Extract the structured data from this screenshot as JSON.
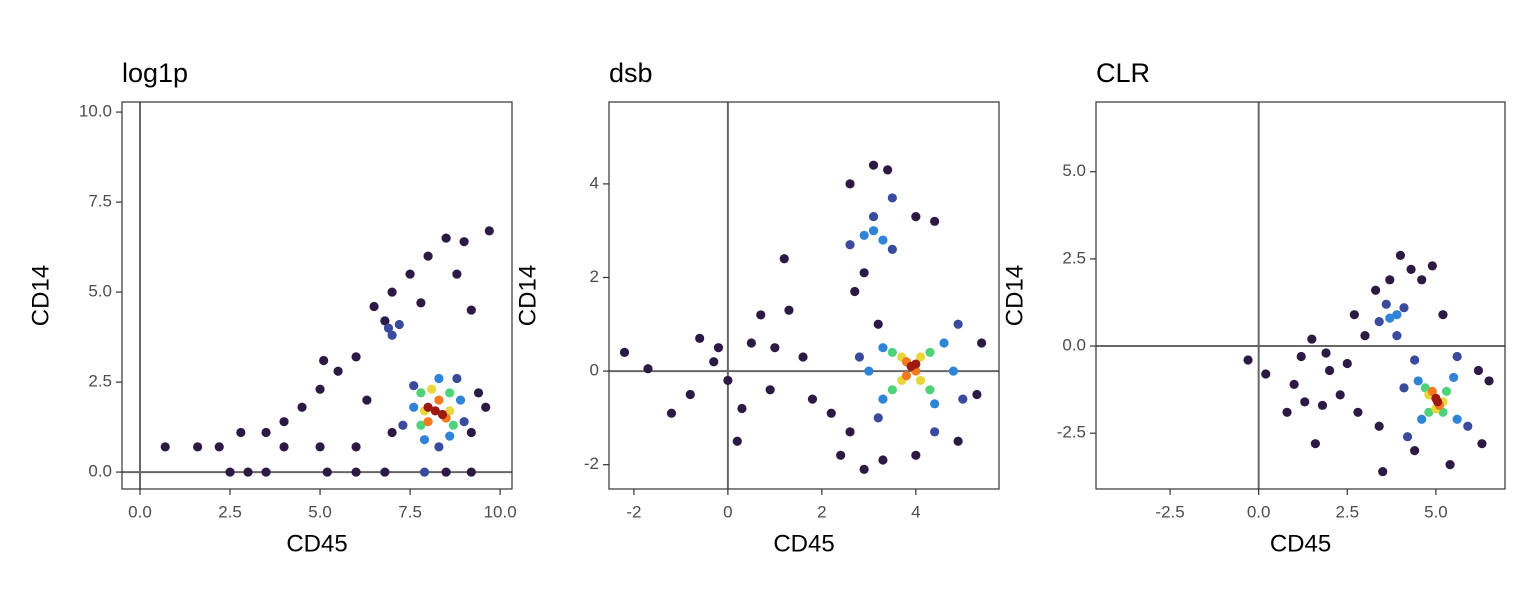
{
  "chart_data": [
    {
      "type": "scatter",
      "title": "log1p",
      "x_label": "CD45",
      "y_label": "CD14",
      "xlim": [
        -0.5,
        10.33
      ],
      "ylim": [
        -0.47,
        10.28
      ],
      "xticks": [
        {
          "value": 0,
          "label": "0.0"
        },
        {
          "value": 2.5,
          "label": "2.5"
        },
        {
          "value": 5,
          "label": "5.0"
        },
        {
          "value": 7.5,
          "label": "7.5"
        },
        {
          "value": 10,
          "label": "10.0"
        }
      ],
      "yticks": [
        {
          "value": 0,
          "label": "0.0"
        },
        {
          "value": 2.5,
          "label": "2.5"
        },
        {
          "value": 5,
          "label": "5.0"
        },
        {
          "value": 7.5,
          "label": "7.5"
        },
        {
          "value": 10,
          "label": "10.0"
        }
      ],
      "reference_lines": {
        "x": 0,
        "y": 0
      },
      "series": [
        {
          "color": "#2c1a45",
          "x": [
            0.7,
            1.6,
            2.2,
            2.5,
            3,
            3.5,
            2.8,
            3.5,
            4,
            4.5,
            5,
            5.5,
            6,
            6.5,
            7,
            7.5,
            8,
            8.5,
            9,
            9.7,
            8.8,
            9.2,
            9.4,
            9.6,
            5.2,
            6,
            6.8,
            8.5,
            9.2,
            4,
            5,
            6,
            7,
            9.2,
            6.3,
            6.8,
            5.1,
            7.8
          ],
          "values": [
            0.7,
            0.7,
            0.7,
            0,
            0,
            0,
            1.1,
            1.1,
            1.4,
            1.8,
            2.3,
            2.8,
            3.2,
            4.6,
            5,
            5.5,
            6,
            6.5,
            6.4,
            6.7,
            5.5,
            4.5,
            2.2,
            1.8,
            0,
            0,
            0,
            0,
            0,
            0.7,
            0.7,
            0.7,
            1.1,
            1.1,
            2,
            4.2,
            3.1,
            4.7
          ]
        },
        {
          "color": "#3a4a9c",
          "x": [
            6.9,
            7.2,
            7.0,
            7.6,
            8.8,
            7.3,
            9.0,
            7.9,
            8.3
          ],
          "values": [
            4.0,
            4.1,
            3.8,
            2.4,
            2.6,
            1.3,
            1.4,
            0,
            0.7
          ]
        },
        {
          "color": "#2f84d8",
          "x": [
            7.6,
            8.9,
            8.3,
            7.9,
            8.6
          ],
          "values": [
            1.8,
            2.0,
            2.6,
            0.9,
            1.0
          ]
        },
        {
          "color": "#4fd37a",
          "x": [
            7.8,
            8.6,
            7.8,
            8.7
          ],
          "values": [
            2.2,
            2.2,
            1.3,
            1.3
          ]
        },
        {
          "color": "#e8d63a",
          "x": [
            8.1,
            7.9,
            8.6
          ],
          "values": [
            2.3,
            1.7,
            1.7
          ]
        },
        {
          "color": "#f47a1f",
          "x": [
            8.3,
            8.0,
            8.5
          ],
          "values": [
            2.0,
            1.4,
            1.5
          ]
        },
        {
          "color": "#9e1a10",
          "x": [
            8.2,
            8.0,
            8.4
          ],
          "values": [
            1.7,
            1.8,
            1.6
          ]
        }
      ]
    },
    {
      "type": "scatter",
      "title": "dsb",
      "x_label": "CD45",
      "y_label": "CD14",
      "xlim": [
        -2.53,
        5.77
      ],
      "ylim": [
        -2.52,
        5.75
      ],
      "xticks": [
        -2,
        0,
        2,
        4
      ],
      "yticks": [
        -2,
        0,
        2,
        4
      ],
      "reference_lines": {
        "x": 0,
        "y": 0
      },
      "series": [
        {
          "color": "#2c1a45",
          "x": [
            -2.2,
            -1.7,
            -1.2,
            -0.8,
            -0.6,
            -0.3,
            0,
            0.2,
            0.5,
            0.7,
            0.9,
            1.0,
            1.2,
            1.3,
            1.6,
            1.8,
            2.2,
            2.4,
            2.7,
            2.6,
            2.9,
            3.3,
            3.1,
            3.4,
            2.6,
            4.0,
            4.4,
            5.4,
            5.3,
            4.9,
            4.0,
            3.2,
            2.9,
            0.3,
            -0.2
          ],
          "values": [
            0.4,
            0.05,
            -0.9,
            -0.5,
            0.7,
            0.2,
            -0.2,
            -1.5,
            0.6,
            1.2,
            -0.4,
            0.5,
            2.4,
            1.3,
            0.3,
            -0.6,
            -0.9,
            -1.8,
            1.7,
            -1.3,
            -2.1,
            -1.9,
            4.4,
            4.3,
            4.0,
            3.3,
            3.2,
            0.6,
            -0.5,
            -1.5,
            -1.8,
            1.0,
            2.1,
            -0.8,
            0.5
          ]
        },
        {
          "color": "#3a4a9c",
          "x": [
            2.6,
            3.5,
            3.1,
            3.5,
            2.8,
            4.9,
            4.4,
            3.2,
            5.0
          ],
          "values": [
            2.7,
            3.7,
            3.3,
            2.6,
            0.3,
            1.0,
            -1.3,
            -1.0,
            -0.6
          ]
        },
        {
          "color": "#2f84d8",
          "x": [
            2.9,
            3.3,
            3.1,
            3.3,
            4.6,
            3.3,
            4.4,
            4.8,
            3.0
          ],
          "values": [
            2.9,
            2.8,
            3.0,
            0.5,
            0.6,
            -0.6,
            -0.7,
            0.0,
            0.0
          ]
        },
        {
          "color": "#4fd37a",
          "x": [
            3.5,
            4.3,
            3.5,
            4.3
          ],
          "values": [
            0.4,
            0.4,
            -0.4,
            -0.4
          ]
        },
        {
          "color": "#e8d63a",
          "x": [
            3.7,
            4.1,
            3.7,
            4.1
          ],
          "values": [
            0.3,
            0.3,
            -0.2,
            -0.2
          ]
        },
        {
          "color": "#f47a1f",
          "x": [
            3.8,
            4.0,
            3.8
          ],
          "values": [
            0.2,
            0.0,
            -0.1
          ]
        },
        {
          "color": "#9e1a10",
          "x": [
            3.9,
            4.0
          ],
          "values": [
            0.1,
            0.15
          ]
        }
      ]
    },
    {
      "type": "scatter",
      "title": "CLR",
      "x_label": "CD45",
      "y_label": "CD14",
      "xlim": [
        -4.59,
        6.95
      ],
      "ylim": [
        -4.1,
        7.0
      ],
      "xticks": [
        {
          "value": -2.5,
          "label": "-2.5"
        },
        {
          "value": 0,
          "label": "0.0"
        },
        {
          "value": 2.5,
          "label": "2.5"
        },
        {
          "value": 5,
          "label": "5.0"
        }
      ],
      "yticks": [
        {
          "value": -2.5,
          "label": "-2.5"
        },
        {
          "value": 0,
          "label": "0.0"
        },
        {
          "value": 2.5,
          "label": "2.5"
        },
        {
          "value": 5,
          "label": "5.0"
        }
      ],
      "reference_lines": {
        "x": 0,
        "y": 0
      },
      "series": [
        {
          "color": "#2c1a45",
          "x": [
            -0.3,
            0.2,
            0.8,
            1,
            1.2,
            1.5,
            1.6,
            1.8,
            2.0,
            2.3,
            2.5,
            2.8,
            3.0,
            3.3,
            3.5,
            3.7,
            4.0,
            4.3,
            4.6,
            4.9,
            5.2,
            6.2,
            6.5,
            6.3,
            5.4,
            4.4,
            3.4,
            2.7,
            1.3,
            1.9
          ],
          "values": [
            -0.4,
            -0.8,
            -1.9,
            -1.1,
            -0.3,
            0.2,
            -2.8,
            -1.7,
            -0.7,
            -1.4,
            -0.5,
            -1.9,
            0.3,
            1.6,
            -3.6,
            1.9,
            2.6,
            2.2,
            1.9,
            2.3,
            0.9,
            -0.7,
            -1.0,
            -2.8,
            -3.4,
            -3.0,
            -2.3,
            0.9,
            -1.6,
            -0.2
          ]
        },
        {
          "color": "#3a4a9c",
          "x": [
            3.4,
            4.1,
            3.9,
            3.6,
            4.4,
            5.6,
            5.9,
            4.2,
            4.1
          ],
          "values": [
            0.7,
            1.1,
            0.3,
            1.2,
            -0.4,
            -0.3,
            -2.3,
            -2.6,
            -1.2
          ]
        },
        {
          "color": "#2f84d8",
          "x": [
            3.7,
            3.9,
            4.5,
            5.5,
            4.6,
            5.6
          ],
          "values": [
            0.8,
            0.9,
            -1.0,
            -0.9,
            -2.1,
            -2.1
          ]
        },
        {
          "color": "#4fd37a",
          "x": [
            4.7,
            5.3,
            4.8,
            5.2
          ],
          "values": [
            -1.2,
            -1.3,
            -1.9,
            -1.9
          ]
        },
        {
          "color": "#e8d63a",
          "x": [
            4.8,
            5.2,
            5.0
          ],
          "values": [
            -1.4,
            -1.6,
            -1.8
          ]
        },
        {
          "color": "#f47a1f",
          "x": [
            4.9,
            5.1
          ],
          "values": [
            -1.3,
            -1.7
          ]
        },
        {
          "color": "#9e1a10",
          "x": [
            5.0,
            5.05
          ],
          "values": [
            -1.5,
            -1.6
          ]
        }
      ]
    }
  ]
}
